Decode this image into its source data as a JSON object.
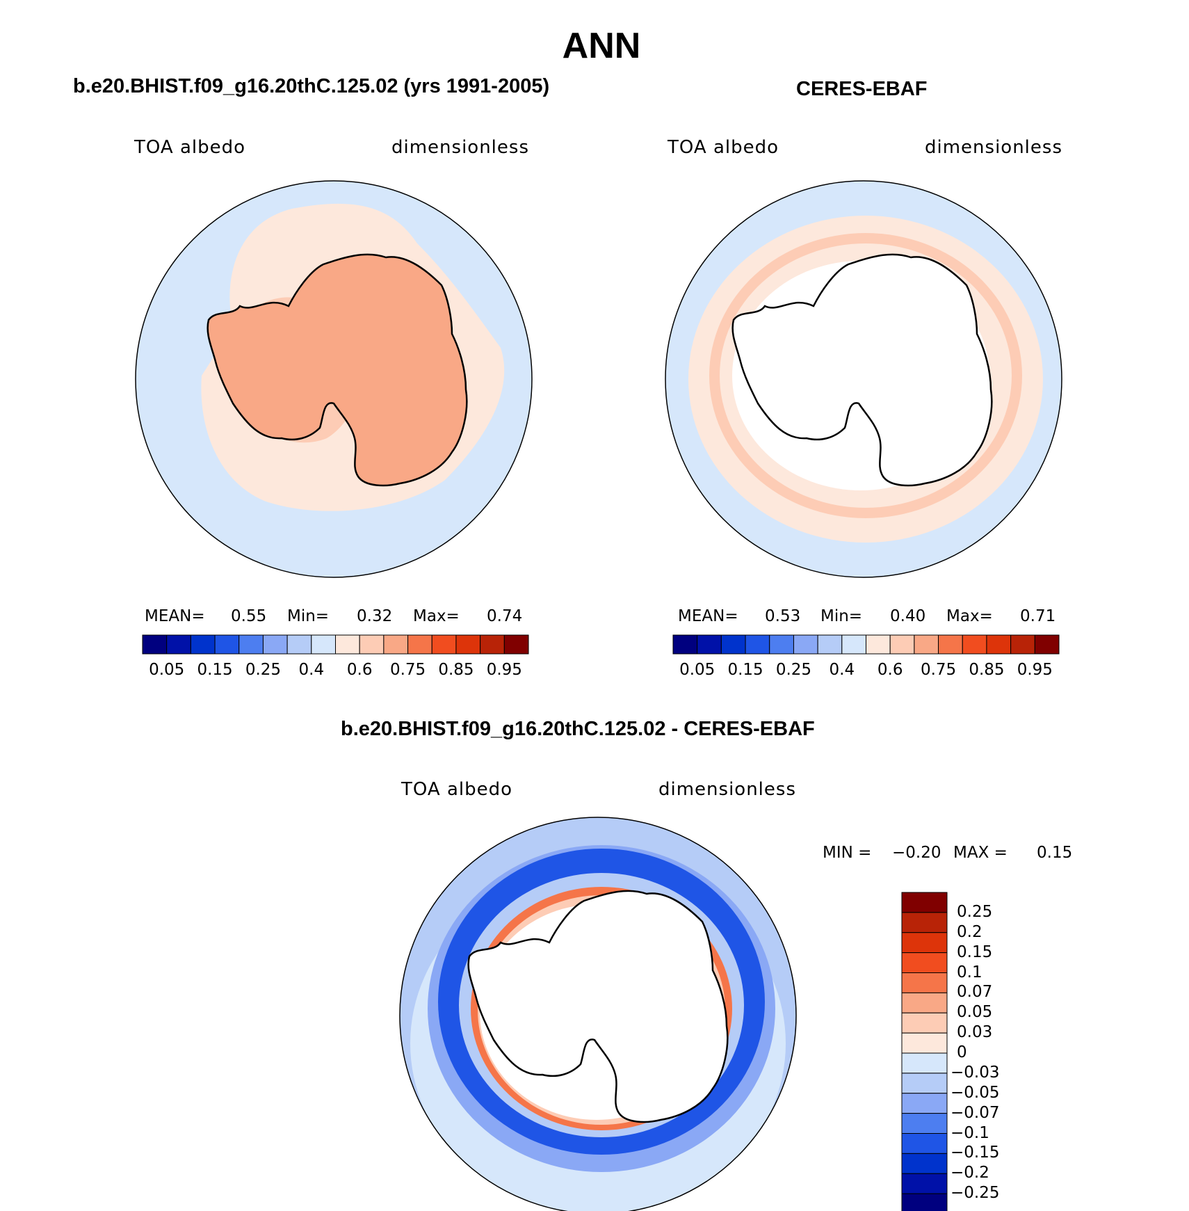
{
  "title": "ANN",
  "colors": {
    "seq": [
      "#00007f",
      "#0011a8",
      "#0033cc",
      "#1f55e6",
      "#4d7ef0",
      "#8aa8f5",
      "#b5ccf7",
      "#d6e7fb",
      "#fde8dc",
      "#fdccb5",
      "#f9a886",
      "#f57549",
      "#f14d1f",
      "#dd340a",
      "#b82307",
      "#800000"
    ],
    "land": "#f9a886",
    "ocean": "#d6e7fb",
    "outline": "#000000"
  },
  "left_panel": {
    "header": "b.e20.BHIST.f09_g16.20thC.125.02 (yrs 1991-2005)",
    "variable": "TOA albedo",
    "units": "dimensionless",
    "stats": {
      "mean_label": "MEAN=",
      "mean": "0.55",
      "min_label": "Min=",
      "min": "0.32",
      "max_label": "Max=",
      "max": "0.74"
    }
  },
  "right_panel": {
    "header": "CERES-EBAF",
    "variable": "TOA albedo",
    "units": "dimensionless",
    "stats": {
      "mean_label": "MEAN=",
      "mean": "0.53",
      "min_label": "Min=",
      "min": "0.40",
      "max_label": "Max=",
      "max": "0.71"
    }
  },
  "colorbar_ticks": [
    "0.05",
    "0.15",
    "0.25",
    "0.4",
    "0.6",
    "0.75",
    "0.85",
    "0.95"
  ],
  "diff_panel": {
    "header": "b.e20.BHIST.f09_g16.20thC.125.02 - CERES-EBAF",
    "variable": "TOA albedo",
    "units": "dimensionless",
    "min_label": "MIN =",
    "min": "−0.20",
    "max_label": "MAX =",
    "max": "0.15",
    "colorbar_ticks": [
      "0.25",
      "0.2",
      "0.15",
      "0.1",
      "0.07",
      "0.05",
      "0.03",
      "0",
      "−0.03",
      "−0.05",
      "−0.07",
      "−0.1",
      "−0.15",
      "−0.2",
      "−0.25"
    ]
  }
}
